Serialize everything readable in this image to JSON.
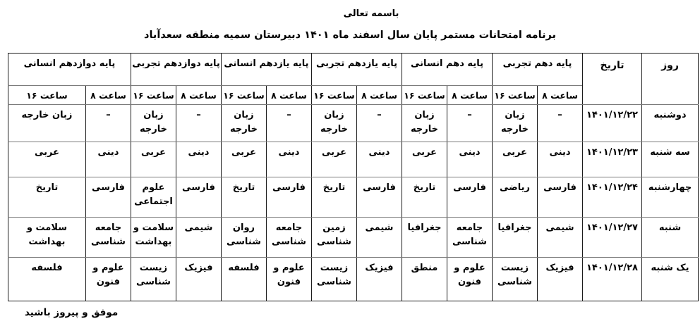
{
  "meta": {
    "bismillah": "باسمه تعالی",
    "title": "برنامه امتحانات مستمر پایان سال اسفند ماه ۱۴۰۱ دبیرستان سمیه منطقه سعدآباد",
    "footer": "موفق و پیروز باشید"
  },
  "table": {
    "day_header": "روز",
    "date_header": "تاریخ",
    "hour_labels": [
      "ساعت ۸",
      "ساعت ۱۶"
    ],
    "grade_groups": [
      "پایه دهم تجربی",
      "پایه دهم انسانی",
      "پایه یازدهم تجربی",
      "پایه یازدهم انسانی",
      "پایه دوازدهم تجربی",
      "پایه دوازدهم انسانی"
    ],
    "rows": [
      {
        "day": "دوشنبه",
        "date": "۱۴۰۱/۱۲/۲۲",
        "subjects": [
          "–",
          "زبان خارجه",
          "–",
          "زبان خارجه",
          "–",
          "زبان خارجه",
          "–",
          "زبان خارجه",
          "–",
          "زبان خارجه",
          "–",
          "زبان خارجه"
        ]
      },
      {
        "day": "سه شنبه",
        "date": "۱۴۰۱/۱۲/۲۳",
        "subjects": [
          "دینی",
          "عربی",
          "دینی",
          "عربی",
          "دینی",
          "عربی",
          "دینی",
          "عربی",
          "دینی",
          "عربی",
          "دینی",
          "عربی"
        ]
      },
      {
        "day": "چهارشنبه",
        "date": "۱۴۰۱/۱۲/۲۴",
        "subjects": [
          "فارسی",
          "ریاضی",
          "فارسی",
          "تاریخ",
          "فارسی",
          "تاریخ",
          "فارسی",
          "تاریخ",
          "فارسی",
          "علوم اجتماعی",
          "فارسی",
          "تاریخ"
        ]
      },
      {
        "day": "شنبه",
        "date": "۱۴۰۱/۱۲/۲۷",
        "subjects": [
          "شیمی",
          "جغرافیا",
          "جامعه شناسی",
          "جغرافیا",
          "شیمی",
          "زمین شناسی",
          "جامعه شناسی",
          "روان شناسی",
          "شیمی",
          "سلامت و بهداشت",
          "جامعه شناسی",
          "سلامت و بهداشت"
        ]
      },
      {
        "day": "یک شنبه",
        "date": "۱۴۰۱/۱۲/۲۸",
        "subjects": [
          "فیزیک",
          "زیست شناسی",
          "علوم و فنون",
          "منطق",
          "فیزیک",
          "زیست شناسی",
          "علوم و فنون",
          "فلسفه",
          "فیزیک",
          "زیست شناسی",
          "علوم و فنون",
          "فلسفه"
        ]
      }
    ]
  },
  "colors": {
    "background": "#ffffff",
    "text": "#000000",
    "grid_vertical": "#1c1c1c",
    "grid_horizontal": "#7a7a7a"
  }
}
